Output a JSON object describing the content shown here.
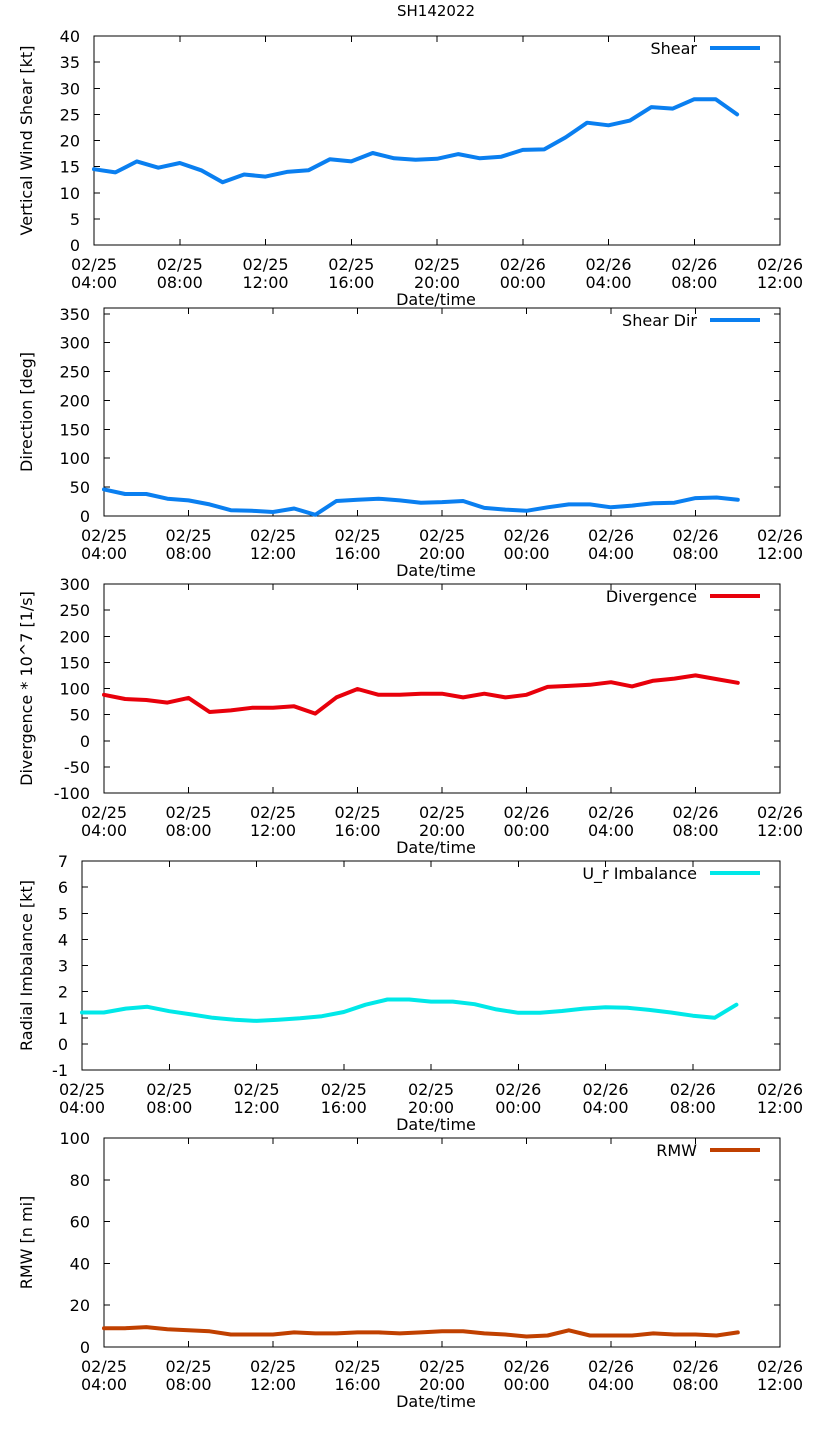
{
  "title": "SH142022",
  "chart_data": [
    {
      "type": "line",
      "series_name": "Shear",
      "color": "#0a7ff0",
      "ylabel": "Vertical Wind Shear [kt]",
      "xlabel": "Date/time",
      "ylim": [
        0,
        40
      ],
      "yticks": [
        0,
        5,
        10,
        15,
        20,
        25,
        30,
        35,
        40
      ],
      "xlim_hours": [
        0,
        32
      ],
      "xticks": [
        {
          "h": 0,
          "date": "02/25",
          "time": "04:00"
        },
        {
          "h": 4,
          "date": "02/25",
          "time": "08:00"
        },
        {
          "h": 8,
          "date": "02/25",
          "time": "12:00"
        },
        {
          "h": 12,
          "date": "02/25",
          "time": "16:00"
        },
        {
          "h": 16,
          "date": "02/25",
          "time": "20:00"
        },
        {
          "h": 20,
          "date": "02/26",
          "time": "00:00"
        },
        {
          "h": 24,
          "date": "02/26",
          "time": "04:00"
        },
        {
          "h": 28,
          "date": "02/26",
          "time": "08:00"
        },
        {
          "h": 32,
          "date": "02/26",
          "time": "12:00"
        }
      ],
      "x": [
        0,
        1,
        2,
        3,
        4,
        5,
        6,
        7,
        8,
        9,
        10,
        11,
        12,
        13,
        14,
        15,
        16,
        17,
        18,
        19,
        20,
        21,
        22,
        23,
        24,
        25,
        26,
        27,
        28,
        29,
        30
      ],
      "values": [
        14.5,
        13.9,
        16.0,
        14.8,
        15.7,
        14.3,
        12.0,
        13.5,
        13.1,
        14.0,
        14.3,
        16.4,
        16.0,
        17.6,
        16.6,
        16.3,
        16.5,
        17.4,
        16.6,
        16.9,
        18.2,
        18.3,
        20.6,
        23.4,
        22.9,
        23.8,
        26.4,
        26.1,
        27.9,
        27.9,
        25.0
      ]
    },
    {
      "type": "line",
      "series_name": "Shear Dir",
      "color": "#0a7ff0",
      "ylabel": "Direction [deg]",
      "xlabel": "Date/time",
      "ylim": [
        0,
        360
      ],
      "yticks": [
        0,
        50,
        100,
        150,
        200,
        250,
        300,
        350
      ],
      "xlim_hours": [
        0,
        32
      ],
      "xticks": [
        {
          "h": 0,
          "date": "02/25",
          "time": "04:00"
        },
        {
          "h": 4,
          "date": "02/25",
          "time": "08:00"
        },
        {
          "h": 8,
          "date": "02/25",
          "time": "12:00"
        },
        {
          "h": 12,
          "date": "02/25",
          "time": "16:00"
        },
        {
          "h": 16,
          "date": "02/25",
          "time": "20:00"
        },
        {
          "h": 20,
          "date": "02/26",
          "time": "00:00"
        },
        {
          "h": 24,
          "date": "02/26",
          "time": "04:00"
        },
        {
          "h": 28,
          "date": "02/26",
          "time": "08:00"
        },
        {
          "h": 32,
          "date": "02/26",
          "time": "12:00"
        }
      ],
      "x": [
        0,
        1,
        2,
        3,
        4,
        5,
        6,
        7,
        8,
        9,
        10,
        11,
        12,
        13,
        14,
        15,
        16,
        17,
        18,
        19,
        20,
        21,
        22,
        23,
        24,
        25,
        26,
        27,
        28,
        29,
        30
      ],
      "values": [
        46,
        38,
        38,
        30,
        27,
        20,
        10,
        9,
        7,
        13,
        2,
        26,
        28,
        30,
        27,
        23,
        24,
        26,
        14,
        11,
        9,
        15,
        20,
        20,
        15,
        18,
        22,
        23,
        31,
        32,
        28
      ]
    },
    {
      "type": "line",
      "series_name": "Divergence",
      "color": "#e8000b",
      "ylabel": "Divergence * 10^7 [1/s]",
      "xlabel": "Date/time",
      "ylim": [
        -100,
        300
      ],
      "yticks": [
        -100,
        -50,
        0,
        50,
        100,
        150,
        200,
        250,
        300
      ],
      "xlim_hours": [
        0,
        32
      ],
      "xticks": [
        {
          "h": 0,
          "date": "02/25",
          "time": "04:00"
        },
        {
          "h": 4,
          "date": "02/25",
          "time": "08:00"
        },
        {
          "h": 8,
          "date": "02/25",
          "time": "12:00"
        },
        {
          "h": 12,
          "date": "02/25",
          "time": "16:00"
        },
        {
          "h": 16,
          "date": "02/25",
          "time": "20:00"
        },
        {
          "h": 20,
          "date": "02/26",
          "time": "00:00"
        },
        {
          "h": 24,
          "date": "02/26",
          "time": "04:00"
        },
        {
          "h": 28,
          "date": "02/26",
          "time": "08:00"
        },
        {
          "h": 32,
          "date": "02/26",
          "time": "12:00"
        }
      ],
      "x": [
        0,
        1,
        2,
        3,
        4,
        5,
        6,
        7,
        8,
        9,
        10,
        11,
        12,
        13,
        14,
        15,
        16,
        17,
        18,
        19,
        20,
        21,
        22,
        23,
        24,
        25,
        26,
        27,
        28,
        29,
        30
      ],
      "values": [
        88,
        80,
        78,
        73,
        82,
        55,
        58,
        63,
        63,
        66,
        52,
        83,
        99,
        88,
        88,
        90,
        90,
        83,
        90,
        83,
        88,
        103,
        105,
        107,
        112,
        104,
        115,
        119,
        125,
        118,
        111
      ]
    },
    {
      "type": "line",
      "series_name": "U_r Imbalance",
      "color": "#00e8e8",
      "ylabel": "Radial Imbalance [kt]",
      "xlabel": "Date/time",
      "ylim": [
        -1,
        7
      ],
      "yticks": [
        -1,
        0,
        1,
        2,
        3,
        4,
        5,
        6,
        7
      ],
      "xlim_hours": [
        0,
        32
      ],
      "xticks": [
        {
          "h": 0,
          "date": "02/25",
          "time": "04:00"
        },
        {
          "h": 4,
          "date": "02/25",
          "time": "08:00"
        },
        {
          "h": 8,
          "date": "02/25",
          "time": "12:00"
        },
        {
          "h": 12,
          "date": "02/25",
          "time": "16:00"
        },
        {
          "h": 16,
          "date": "02/25",
          "time": "20:00"
        },
        {
          "h": 20,
          "date": "02/26",
          "time": "00:00"
        },
        {
          "h": 24,
          "date": "02/26",
          "time": "04:00"
        },
        {
          "h": 28,
          "date": "02/26",
          "time": "08:00"
        },
        {
          "h": 32,
          "date": "02/26",
          "time": "12:00"
        }
      ],
      "x": [
        0,
        1,
        2,
        3,
        4,
        5,
        6,
        7,
        8,
        9,
        10,
        11,
        12,
        13,
        14,
        15,
        16,
        17,
        18,
        19,
        20,
        21,
        22,
        23,
        24,
        25,
        26,
        27,
        28,
        29,
        30
      ],
      "values": [
        1.2,
        1.2,
        1.35,
        1.42,
        1.25,
        1.13,
        1.0,
        0.92,
        0.88,
        0.92,
        0.98,
        1.06,
        1.22,
        1.5,
        1.7,
        1.7,
        1.62,
        1.62,
        1.52,
        1.32,
        1.19,
        1.19,
        1.26,
        1.35,
        1.4,
        1.38,
        1.3,
        1.2,
        1.08,
        1.0,
        1.5
      ]
    },
    {
      "type": "line",
      "series_name": "RMW",
      "color": "#c04000",
      "ylabel": "RMW [n mi]",
      "xlabel": "Date/time",
      "ylim": [
        0,
        100
      ],
      "yticks": [
        0,
        20,
        40,
        60,
        80,
        100
      ],
      "xlim_hours": [
        0,
        32
      ],
      "xticks": [
        {
          "h": 0,
          "date": "02/25",
          "time": "04:00"
        },
        {
          "h": 4,
          "date": "02/25",
          "time": "08:00"
        },
        {
          "h": 8,
          "date": "02/25",
          "time": "12:00"
        },
        {
          "h": 12,
          "date": "02/25",
          "time": "16:00"
        },
        {
          "h": 16,
          "date": "02/25",
          "time": "20:00"
        },
        {
          "h": 20,
          "date": "02/26",
          "time": "00:00"
        },
        {
          "h": 24,
          "date": "02/26",
          "time": "04:00"
        },
        {
          "h": 28,
          "date": "02/26",
          "time": "08:00"
        },
        {
          "h": 32,
          "date": "02/26",
          "time": "12:00"
        }
      ],
      "x": [
        0,
        1,
        2,
        3,
        4,
        5,
        6,
        7,
        8,
        9,
        10,
        11,
        12,
        13,
        14,
        15,
        16,
        17,
        18,
        19,
        20,
        21,
        22,
        23,
        24,
        25,
        26,
        27,
        28,
        29,
        30
      ],
      "values": [
        9.0,
        9.0,
        9.5,
        8.5,
        8.0,
        7.5,
        6.0,
        6.0,
        6.0,
        7.0,
        6.5,
        6.5,
        7.0,
        7.0,
        6.5,
        7.0,
        7.5,
        7.5,
        6.5,
        6.0,
        5.0,
        5.5,
        8.0,
        5.5,
        5.5,
        5.5,
        6.5,
        6.0,
        6.0,
        5.5,
        7.0
      ]
    }
  ]
}
